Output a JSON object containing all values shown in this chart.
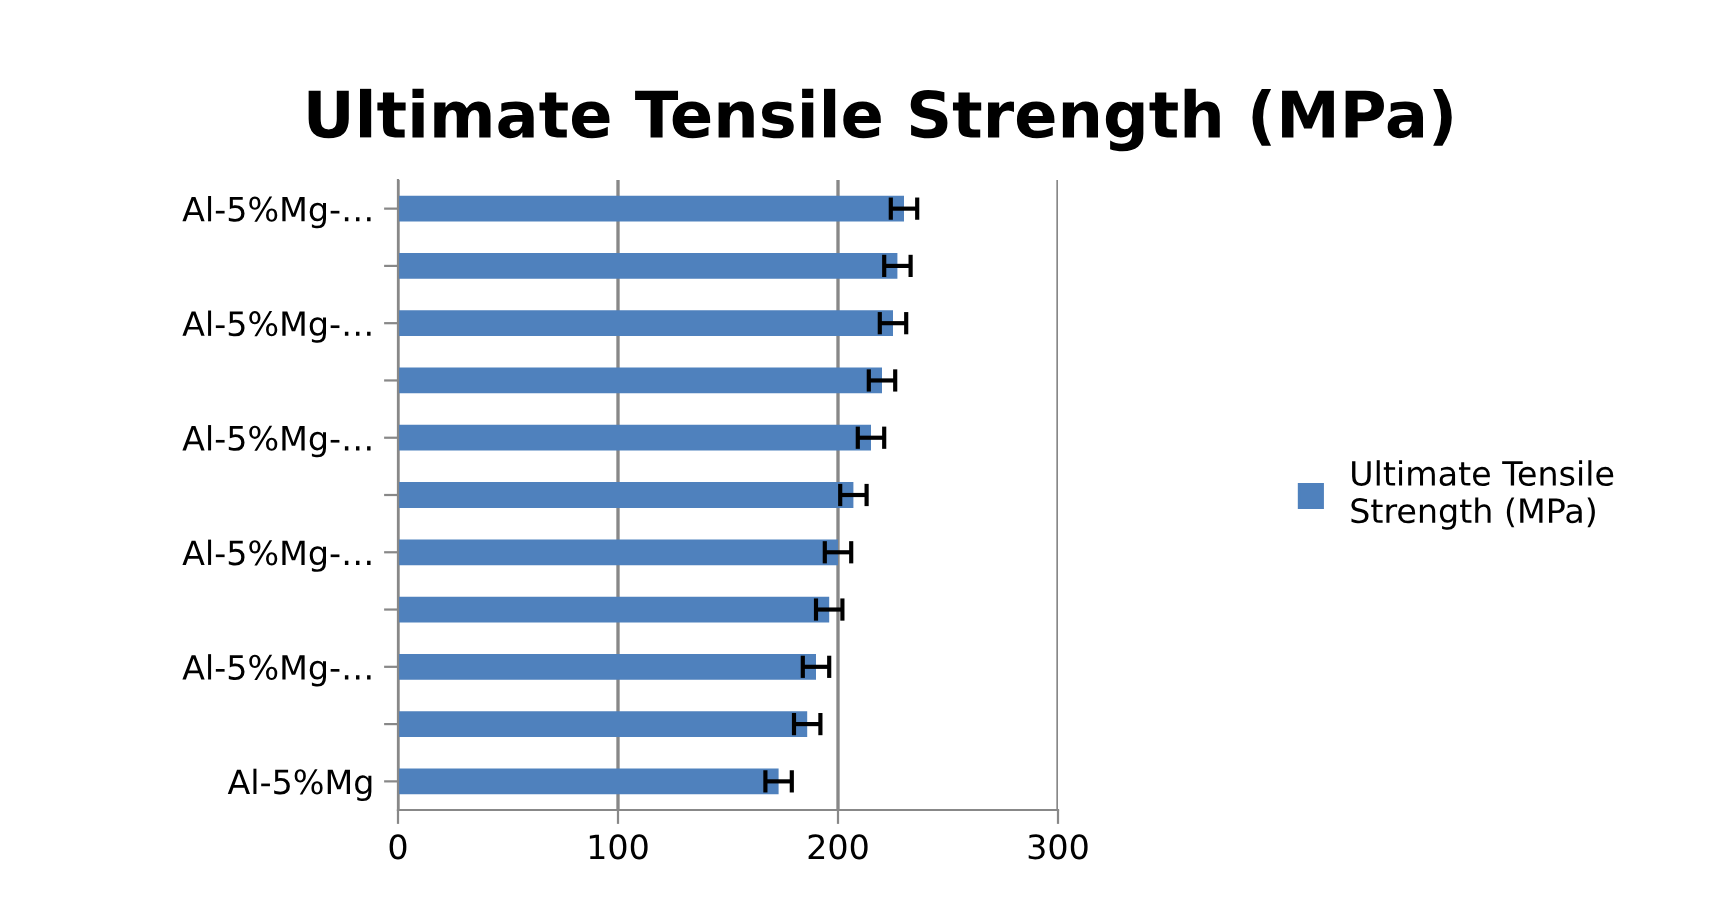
{
  "chart_data": {
    "type": "bar",
    "orientation": "horizontal",
    "title": "Ultimate Tensile Strength (MPa)",
    "categories": [
      "Al-5%Mg-…",
      null,
      "Al-5%Mg-…",
      null,
      "Al-5%Mg-…",
      null,
      "Al-5%Mg-…",
      null,
      "Al-5%Mg-…",
      null,
      "Al-5%Mg"
    ],
    "series": [
      {
        "name": "Ultimate Tensile Strength (MPa)",
        "color": "#4f81bd",
        "values": [
          230,
          227,
          225,
          220,
          215,
          207,
          200,
          196,
          190,
          186,
          173
        ],
        "errors": [
          6,
          6,
          6,
          6,
          6,
          6,
          6,
          6,
          6,
          6,
          6
        ]
      }
    ],
    "xlim": [
      0,
      300
    ],
    "xticks": [
      0,
      100,
      200,
      300
    ],
    "grid": "x",
    "legend": "right"
  }
}
